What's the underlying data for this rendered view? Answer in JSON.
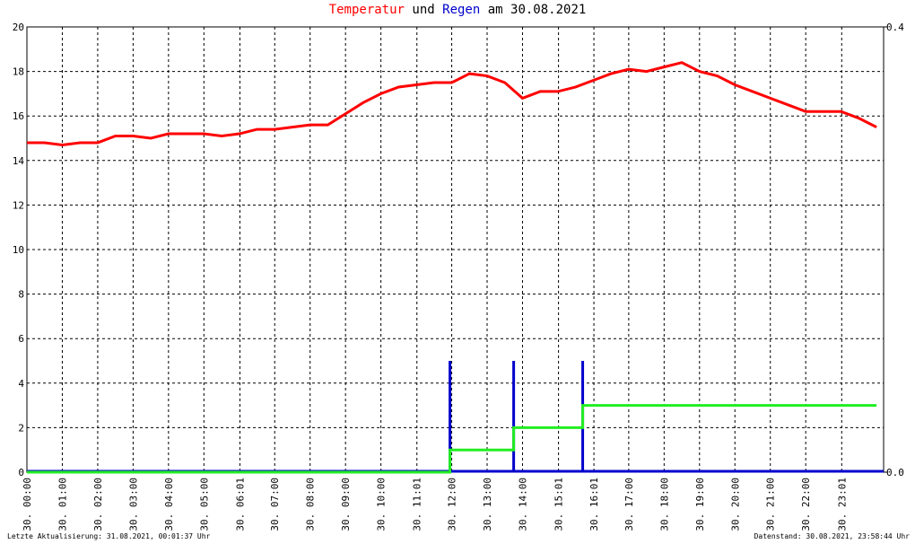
{
  "chart_data": {
    "type": "line",
    "title_parts": [
      "und",
      "am 30.08.2021"
    ],
    "xlim": [
      0,
      24.2
    ],
    "ylim": [
      0,
      20
    ],
    "y2lim": [
      0,
      0.4
    ],
    "yticks": [
      0,
      2,
      4,
      6,
      8,
      10,
      12,
      14,
      16,
      18,
      20
    ],
    "y2ticks": [
      {
        "value": 0,
        "label": "0.0"
      },
      0.4
    ],
    "xticks": [
      {
        "value": 0,
        "label": "30. 00:00"
      },
      {
        "value": 1,
        "label": "30. 01:00"
      },
      {
        "value": 2,
        "label": "30. 02:00"
      },
      {
        "value": 3,
        "label": "30. 03:00"
      },
      {
        "value": 4,
        "label": "30. 04:00"
      },
      {
        "value": 5,
        "label": "30. 05:00"
      },
      {
        "value": 6.0167,
        "label": "30. 06:01"
      },
      {
        "value": 7,
        "label": "30. 07:00"
      },
      {
        "value": 8,
        "label": "30. 08:00"
      },
      {
        "value": 9,
        "label": "30. 09:00"
      },
      {
        "value": 10,
        "label": "30. 10:00"
      },
      {
        "value": 11.0167,
        "label": "30. 11:01"
      },
      {
        "value": 12,
        "label": "30. 12:00"
      },
      {
        "value": 13,
        "label": "30. 13:00"
      },
      {
        "value": 14,
        "label": "30. 14:00"
      },
      {
        "value": 15.0167,
        "label": "30. 15:01"
      },
      {
        "value": 16.0167,
        "label": "30. 16:01"
      },
      {
        "value": 17,
        "label": "30. 17:00"
      },
      {
        "value": 18,
        "label": "30. 18:00"
      },
      {
        "value": 19,
        "label": "30. 19:00"
      },
      {
        "value": 20,
        "label": "30. 20:00"
      },
      {
        "value": 21,
        "label": "30. 21:00"
      },
      {
        "value": 22,
        "label": "30. 22:00"
      },
      {
        "value": 23.0167,
        "label": "30. 23:01"
      }
    ],
    "grid": true,
    "series": [
      {
        "name": "Temperatur",
        "color": "#ff0000",
        "type": "line",
        "x": [
          0,
          0.5,
          1,
          1.5,
          2,
          2.5,
          3,
          3.5,
          4,
          4.5,
          5,
          5.5,
          6,
          6.5,
          7,
          7.5,
          8,
          8.5,
          9,
          9.5,
          10,
          10.5,
          11,
          11.5,
          12,
          12.5,
          13,
          13.5,
          14,
          14.5,
          15,
          15.5,
          16,
          16.5,
          17,
          17.5,
          18,
          18.5,
          19,
          19.5,
          20,
          20.5,
          21,
          21.5,
          22,
          22.5,
          23,
          23.5,
          24
        ],
        "values": [
          14.8,
          14.8,
          14.7,
          14.8,
          14.8,
          15.1,
          15.1,
          15.0,
          15.2,
          15.2,
          15.2,
          15.1,
          15.2,
          15.4,
          15.4,
          15.5,
          15.6,
          15.6,
          16.1,
          16.6,
          17.0,
          17.3,
          17.4,
          17.5,
          17.5,
          17.9,
          17.8,
          17.5,
          16.8,
          17.1,
          17.1,
          17.3,
          17.6,
          17.9,
          18.1,
          18.0,
          18.2,
          18.4,
          18.0,
          17.8,
          17.4,
          17.1,
          16.8,
          16.5,
          16.2,
          16.2,
          16.2,
          15.9,
          15.5
        ]
      },
      {
        "name": "Regen",
        "color": "#0000cc",
        "type": "bar",
        "axis": "y2",
        "x": [
          11.95,
          13.75,
          15.7
        ],
        "values": [
          0.1,
          0.1,
          0.1
        ]
      },
      {
        "color": "#22ee22",
        "type": "line",
        "x": [
          0,
          11.95,
          11.95,
          13.75,
          13.75,
          15.7,
          15.7,
          24
        ],
        "values": [
          0,
          0,
          1,
          1,
          2,
          2,
          3,
          3
        ]
      }
    ],
    "footer_left": "Letzte Aktualisierung: 31.08.2021, 00:01:37 Uhr",
    "footer_right": "Datenstand: 30.08.2021, 23:58:44 Uhr"
  }
}
